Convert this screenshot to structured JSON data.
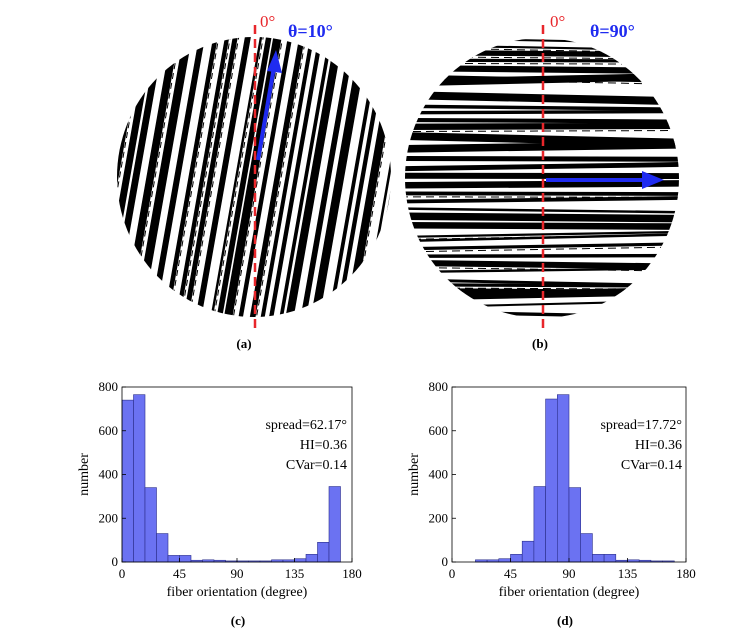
{
  "panels": {
    "a": {
      "label": "(a)",
      "zero_label": "0°",
      "theta_label": "θ=10°",
      "theta_deg": 10
    },
    "b": {
      "label": "(b)",
      "zero_label": "0°",
      "theta_label": "θ=90°",
      "theta_deg": 90
    },
    "c": {
      "label": "(c)"
    },
    "d": {
      "label": "(d)"
    }
  },
  "colors": {
    "axis_line": "#e8262b",
    "arrow": "#1f2bf0",
    "bar_fill": "#6b72f2",
    "bar_edge": "#2a2e8a"
  },
  "chart_data": [
    {
      "type": "bar",
      "panel": "c",
      "x": [
        4.5,
        13.5,
        22.5,
        31.5,
        40.5,
        49.5,
        58.5,
        67.5,
        76.5,
        85.5,
        94.5,
        103.5,
        112.5,
        121.5,
        130.5,
        139.5,
        148.5,
        157.5,
        166.5,
        175.5
      ],
      "values": [
        740,
        765,
        340,
        130,
        30,
        30,
        8,
        10,
        8,
        5,
        5,
        5,
        5,
        10,
        10,
        15,
        35,
        90,
        345,
        0
      ],
      "bin_width": 9,
      "xlabel": "fiber orientation (degree)",
      "ylabel": "number",
      "xlim": [
        0,
        180
      ],
      "ylim": [
        0,
        800
      ],
      "xticks": [
        0,
        45,
        90,
        135,
        180
      ],
      "yticks": [
        0,
        200,
        400,
        600,
        800
      ],
      "annotations": [
        "spread=62.17°",
        "HI=0.36",
        "CVar=0.14"
      ]
    },
    {
      "type": "bar",
      "panel": "d",
      "x": [
        22.5,
        31.5,
        40.5,
        49.5,
        58.5,
        67.5,
        76.5,
        85.5,
        94.5,
        103.5,
        112.5,
        121.5,
        130.5,
        139.5,
        148.5,
        157.5,
        166.5
      ],
      "values": [
        10,
        10,
        15,
        35,
        95,
        345,
        745,
        765,
        340,
        130,
        35,
        35,
        8,
        10,
        8,
        5,
        5
      ],
      "bin_width": 9,
      "xlabel": "fiber orientation (degree)",
      "ylabel": "number",
      "xlim": [
        0,
        180
      ],
      "ylim": [
        0,
        800
      ],
      "xticks": [
        0,
        45,
        90,
        135,
        180
      ],
      "yticks": [
        0,
        200,
        400,
        600,
        800
      ],
      "annotations": [
        "spread=17.72°",
        "HI=0.36",
        "CVar=0.14"
      ]
    }
  ]
}
